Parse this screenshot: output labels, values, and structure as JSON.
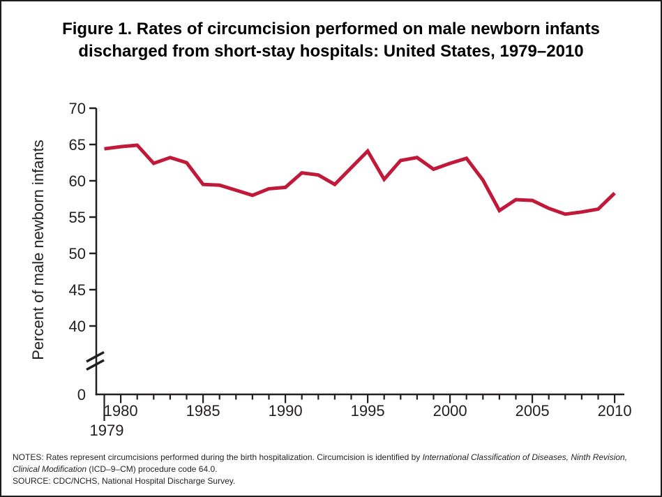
{
  "page": {
    "title_line1": "Figure 1. Rates of circumcision performed on male newborn infants",
    "title_line2": "discharged from short-stay hospitals: United States, 1979–2010",
    "notes": {
      "prefix": "NOTES: Rates represent circumcisions performed during the birth hospitalization. Circumcision is identified by ",
      "italic": "International Classification of Diseases, Ninth Revision, Clinical Modification",
      "suffix": " (ICD–9–CM) procedure code 64.0."
    },
    "source": "SOURCE: CDC/NCHS, National Hospital Discharge Survey."
  },
  "chart_data": {
    "type": "line",
    "title": "Figure 1. Rates of circumcision performed on male newborn infants discharged from short-stay hospitals: United States, 1979–2010",
    "xlabel": "",
    "ylabel": "Percent of male newborn infants",
    "x": [
      1979,
      1980,
      1981,
      1982,
      1983,
      1984,
      1985,
      1986,
      1987,
      1988,
      1989,
      1990,
      1991,
      1992,
      1993,
      1994,
      1995,
      1996,
      1997,
      1998,
      1999,
      2000,
      2001,
      2002,
      2003,
      2004,
      2005,
      2006,
      2007,
      2008,
      2009,
      2010
    ],
    "series": [
      {
        "name": "Percent of male newborn infants circumcised",
        "values": [
          64.4,
          64.7,
          64.9,
          62.4,
          63.2,
          62.5,
          59.5,
          59.4,
          58.7,
          58.0,
          58.9,
          59.1,
          61.1,
          60.8,
          59.5,
          61.8,
          64.1,
          60.2,
          62.8,
          63.2,
          61.6,
          62.4,
          63.1,
          60.1,
          55.9,
          57.4,
          57.3,
          56.2,
          55.4,
          55.7,
          56.1,
          58.3
        ]
      }
    ],
    "y_ticks": [
      70,
      65,
      60,
      55,
      50,
      45,
      40,
      0
    ],
    "x_labeled_years": [
      1980,
      1985,
      1990,
      1995,
      2000,
      2005,
      2010
    ],
    "x_first_year_label": "1979",
    "y_axis_break": true,
    "ylim": [
      0,
      70
    ],
    "grid": false,
    "legend": "none",
    "line_color": "#c1193a",
    "axis_color": "#231f20"
  }
}
